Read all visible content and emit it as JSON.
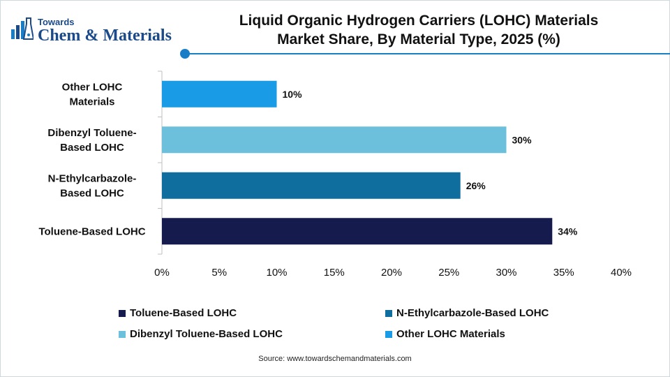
{
  "logo": {
    "small_text": "Towards",
    "big_text": "Chem & Materials"
  },
  "title_lines": [
    "Liquid Organic Hydrogen Carriers (LOHC) Materials",
    "Market Share, By Material Type, 2025 (%)"
  ],
  "source": "Source: www.towardschemandmaterials.com",
  "chart_data": {
    "type": "bar",
    "orientation": "horizontal",
    "categories": [
      [
        "Other LOHC",
        "Materials"
      ],
      [
        "Dibenzyl Toluene-",
        "Based LOHC"
      ],
      [
        "N-Ethylcarbazole-",
        "Based LOHC"
      ],
      [
        "Toluene-Based LOHC"
      ]
    ],
    "values": [
      10,
      30,
      26,
      34
    ],
    "value_labels": [
      "10%",
      "30%",
      "26%",
      "34%"
    ],
    "colors": [
      "#1a9be6",
      "#6cc0dc",
      "#0f6e9e",
      "#151c4d"
    ],
    "xlim": [
      0,
      40
    ],
    "x_ticks": [
      0,
      5,
      10,
      15,
      20,
      25,
      30,
      35,
      40
    ],
    "x_tick_labels": [
      "0%",
      "5%",
      "10%",
      "15%",
      "20%",
      "25%",
      "30%",
      "35%",
      "40%"
    ],
    "grid": false,
    "legend_position": "bottom",
    "legend": [
      {
        "label": "Toluene-Based LOHC",
        "color": "#151c4d"
      },
      {
        "label": "N-Ethylcarbazole-Based LOHC",
        "color": "#0f6e9e"
      },
      {
        "label": "Dibenzyl Toluene-Based LOHC",
        "color": "#6cc0dc"
      },
      {
        "label": "Other LOHC Materials",
        "color": "#1a9be6"
      }
    ]
  }
}
